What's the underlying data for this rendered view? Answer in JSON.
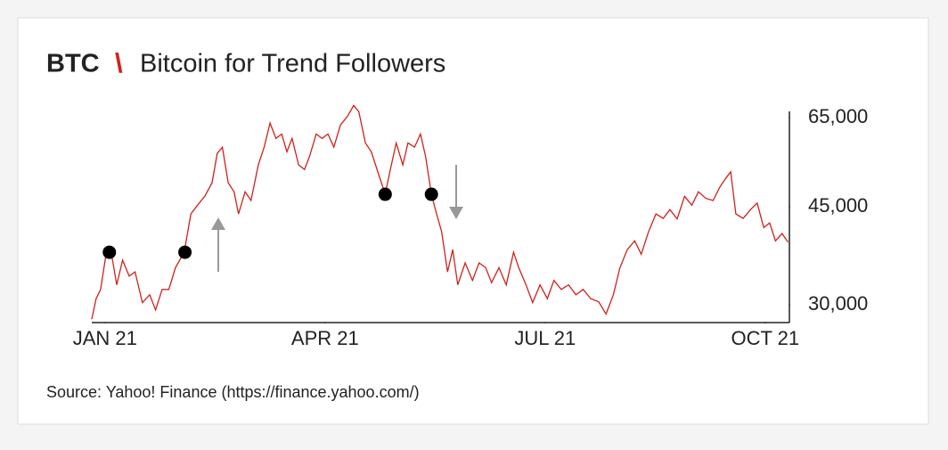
{
  "chart_data": {
    "type": "line",
    "ticker": "BTC",
    "separator": "\\",
    "title": "Bitcoin for Trend Followers",
    "source": "Source: Yahoo! Finance (https://finance.yahoo.com/)",
    "log_y": true,
    "xlim": [
      -0.18,
      9.33
    ],
    "ylim": [
      27900,
      69000
    ],
    "xticks": [
      {
        "value": 0,
        "label": "JAN 21"
      },
      {
        "value": 3,
        "label": "APR 21"
      },
      {
        "value": 6,
        "label": "JUL 21"
      },
      {
        "value": 9,
        "label": "OCT 21"
      }
    ],
    "yticks": [
      {
        "value": 30000,
        "label": "30,000"
      },
      {
        "value": 45000,
        "label": "45,000"
      },
      {
        "value": 65000,
        "label": "65,000"
      }
    ],
    "series": [
      {
        "color": "#d0211c",
        "x": [
          -0.18,
          -0.12,
          -0.06,
          0.02,
          0.09,
          0.16,
          0.24,
          0.33,
          0.41,
          0.51,
          0.61,
          0.69,
          0.78,
          0.87,
          0.96,
          1.08,
          1.17,
          1.26,
          1.36,
          1.46,
          1.53,
          1.6,
          1.68,
          1.76,
          1.82,
          1.91,
          1.99,
          2.09,
          2.17,
          2.25,
          2.33,
          2.41,
          2.48,
          2.55,
          2.64,
          2.72,
          2.79,
          2.88,
          2.96,
          3.04,
          3.12,
          3.21,
          3.31,
          3.39,
          3.46,
          3.55,
          3.63,
          3.73,
          3.82,
          3.89,
          3.97,
          4.06,
          4.13,
          4.22,
          4.3,
          4.37,
          4.45,
          4.52,
          4.59,
          4.67,
          4.74,
          4.81,
          4.91,
          5.01,
          5.1,
          5.19,
          5.27,
          5.37,
          5.47,
          5.57,
          5.64,
          5.74,
          5.83,
          5.93,
          6.03,
          6.12,
          6.22,
          6.32,
          6.42,
          6.52,
          6.62,
          6.73,
          6.83,
          6.93,
          7.02,
          7.12,
          7.22,
          7.31,
          7.41,
          7.51,
          7.61,
          7.7,
          7.8,
          7.9,
          8.0,
          8.09,
          8.19,
          8.29,
          8.38,
          8.46,
          8.53,
          8.6,
          8.7,
          8.8,
          8.89,
          8.98,
          9.06,
          9.14,
          9.23,
          9.31
        ],
        "values": [
          28300,
          30800,
          32000,
          37400,
          37000,
          32600,
          36100,
          33800,
          34400,
          30300,
          31300,
          29400,
          32000,
          32000,
          35000,
          37300,
          43700,
          45300,
          47000,
          49700,
          56100,
          57600,
          49700,
          47900,
          43700,
          47900,
          46200,
          53500,
          57600,
          63600,
          59700,
          60800,
          56500,
          59700,
          53500,
          52500,
          55500,
          60800,
          59700,
          60800,
          57600,
          63100,
          65500,
          68400,
          66700,
          58600,
          56500,
          51500,
          47400,
          52500,
          58600,
          53500,
          58600,
          57600,
          60800,
          55500,
          47400,
          43700,
          40600,
          34400,
          37700,
          32600,
          35700,
          33200,
          35700,
          35000,
          32900,
          35000,
          32600,
          37300,
          35000,
          32600,
          30300,
          32600,
          30800,
          33200,
          32000,
          32600,
          31300,
          32000,
          30800,
          30400,
          28900,
          31300,
          35000,
          37700,
          39100,
          37000,
          40600,
          43700,
          42900,
          44500,
          42800,
          47000,
          45300,
          47900,
          46600,
          46200,
          48800,
          50600,
          52000,
          43700,
          42900,
          44500,
          45700,
          41300,
          42100,
          39100,
          40300,
          38900
        ]
      }
    ],
    "markers": {
      "color": "#000000",
      "x": [
        0.06,
        1.09,
        3.82,
        4.45
      ],
      "values": [
        37300,
        37300,
        47400,
        47400
      ]
    }
  }
}
